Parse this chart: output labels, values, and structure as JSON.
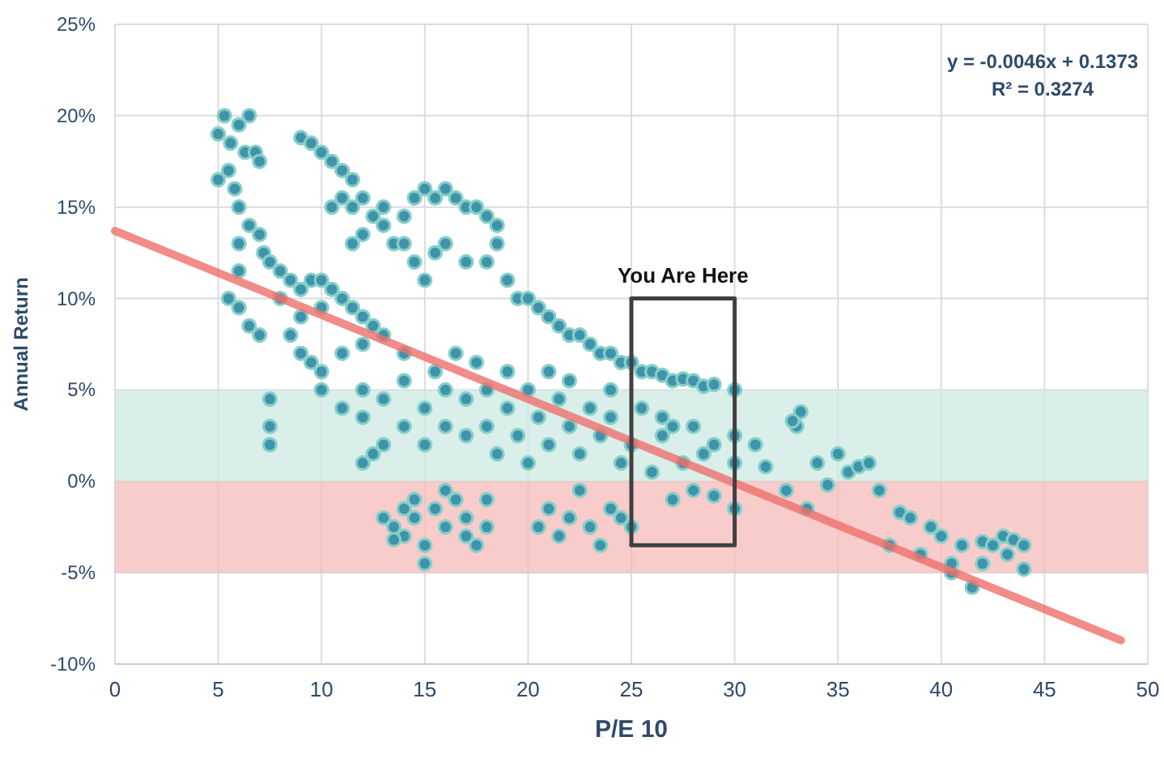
{
  "chart_data": {
    "type": "scatter",
    "xlabel": "P/E 10",
    "ylabel": "Annual Return",
    "xlim": [
      0,
      50
    ],
    "xticks": [
      0,
      5,
      10,
      15,
      20,
      25,
      30,
      35,
      40,
      45,
      50
    ],
    "ylim": [
      -10,
      25
    ],
    "yticks": [
      {
        "value": -10,
        "label": "-10%"
      },
      {
        "value": -5,
        "label": "-5%"
      },
      {
        "value": 0,
        "label": "0%"
      },
      {
        "value": 5,
        "label": "5%"
      },
      {
        "value": 10,
        "label": "10%"
      },
      {
        "value": 15,
        "label": "15%"
      },
      {
        "value": 20,
        "label": "20%"
      },
      {
        "value": 25,
        "label": "25%"
      }
    ],
    "grid": true,
    "bands": [
      {
        "axis": "y",
        "from": 0,
        "to": 5,
        "color": "#cdeae3"
      },
      {
        "axis": "y",
        "from": -5,
        "to": 0,
        "color": "#f4bbb8"
      }
    ],
    "annotations": [
      "y = -0.0046x + 0.1373",
      "R² = 0.3274",
      {
        "text": "You Are Here",
        "x": 27.5,
        "y": 10
      }
    ],
    "series": [
      {
        "color": "#3f93aa",
        "marker": "circle",
        "x": [
          5,
          5.3,
          5.6,
          6,
          6.5,
          6.3,
          5.5,
          5.8,
          5,
          6,
          6.5,
          7,
          6.8,
          7,
          7.2,
          7.5,
          8,
          8.5,
          8,
          9,
          9.5,
          10,
          10.5,
          11,
          11.5,
          12,
          12.5,
          9,
          10,
          8.5,
          9,
          9.5,
          10,
          11,
          12,
          13,
          14,
          7.5,
          7.5,
          7.5,
          6,
          6.5,
          7,
          6,
          5.5,
          6,
          9,
          9.5,
          10,
          10.5,
          11,
          11.5,
          11,
          11.5,
          12,
          12.5,
          13,
          13,
          13.5,
          12,
          11.5,
          10.5,
          14,
          14.5,
          15,
          15.5,
          16,
          16.5,
          17,
          17.5,
          18,
          18.5,
          18.5,
          18,
          14,
          14.5,
          15,
          15.5,
          16,
          17,
          19,
          19.5,
          20,
          20.5,
          21,
          21.5,
          22,
          22.5,
          23,
          23.5,
          24,
          24.5,
          25,
          25.5,
          26,
          26.5,
          27,
          27.5,
          28,
          28.5,
          29,
          30,
          10,
          11,
          12,
          12,
          13,
          13,
          12,
          12.5,
          14,
          14,
          15,
          15,
          15.5,
          16,
          16,
          16.5,
          17,
          17,
          17.5,
          18,
          18,
          18.5,
          19,
          19,
          19.5,
          20,
          20,
          20.5,
          21,
          21,
          21.5,
          22,
          22,
          22.5,
          23,
          23.5,
          24,
          24,
          24.5,
          25,
          25.5,
          26,
          26.5,
          27,
          27.5,
          28,
          28.5,
          29,
          30,
          30,
          31,
          13,
          13.5,
          14,
          14,
          14.5,
          14.5,
          15,
          15,
          15.5,
          16,
          16,
          16.5,
          17,
          17,
          17.5,
          18,
          18,
          13.5,
          20.5,
          21,
          21.5,
          22,
          22.5,
          23,
          23.5,
          24,
          24.5,
          25,
          31.5,
          32.5,
          33,
          33.2,
          32.8,
          33.5,
          34,
          34.5,
          35,
          35.5,
          36,
          36.5,
          37,
          37.5,
          38,
          38.5,
          39,
          39.5,
          40,
          40.5,
          40.5,
          41,
          41.5,
          42,
          42,
          42.5,
          43,
          43.2,
          43.5,
          44,
          44,
          27,
          28,
          29,
          30,
          26.5
        ],
        "values": [
          19,
          20,
          18.5,
          19.5,
          20,
          18,
          17,
          16,
          16.5,
          15,
          14,
          13.5,
          18,
          17.5,
          12.5,
          12,
          11.5,
          11,
          10,
          10.5,
          11,
          11,
          10.5,
          10,
          9.5,
          9,
          8.5,
          9,
          9.5,
          8,
          7,
          6.5,
          6,
          7,
          7.5,
          8,
          7,
          4.5,
          3,
          2,
          9.5,
          8.5,
          8,
          13,
          10,
          11.5,
          18.8,
          18.5,
          18,
          17.5,
          17,
          16.5,
          15.5,
          15,
          15.5,
          14.5,
          14,
          15,
          13,
          13.5,
          13,
          15,
          14.5,
          15.5,
          16,
          15.5,
          16,
          15.5,
          15,
          15,
          14.5,
          14,
          13,
          12,
          13,
          12,
          11,
          12.5,
          13,
          12,
          11,
          10,
          10,
          9.5,
          9,
          8.5,
          8,
          8,
          7.5,
          7,
          7,
          6.5,
          6.5,
          6,
          6,
          5.8,
          5.5,
          5.6,
          5.5,
          5.2,
          5.3,
          5,
          5,
          4,
          3.5,
          5,
          4.5,
          2,
          1,
          1.5,
          3,
          5.5,
          2,
          4,
          6,
          3,
          5,
          7,
          2.5,
          4.5,
          6.5,
          3,
          5,
          1.5,
          4,
          6,
          2.5,
          5,
          1,
          3.5,
          6,
          2,
          4.5,
          3,
          5.5,
          1.5,
          4,
          2.5,
          3.5,
          5,
          1,
          2,
          4,
          0.5,
          2.5,
          3,
          1,
          3,
          1.5,
          2,
          2.5,
          1,
          2,
          -2,
          -2.5,
          -1.5,
          -3,
          -1,
          -2,
          -3.5,
          -4.5,
          -1.5,
          -2.5,
          -0.5,
          -1,
          -2,
          -3,
          -3.5,
          -1,
          -2.5,
          -3.2,
          -2.5,
          -1.5,
          -3,
          -2,
          -0.5,
          -2.5,
          -3.5,
          -1.5,
          -2,
          -2.5,
          0.8,
          -0.5,
          3,
          3.8,
          3.3,
          -1.5,
          1,
          -0.2,
          1.5,
          0.5,
          0.8,
          1,
          -0.5,
          -3.5,
          -1.7,
          -2,
          -4,
          -2.5,
          -3,
          -5,
          -4.5,
          -3.5,
          -5.8,
          -3.3,
          -4.5,
          -3.5,
          -3,
          -4,
          -3.2,
          -3.5,
          -4.8,
          -1,
          -0.5,
          -0.8,
          -1.5,
          3.5
        ]
      },
      {
        "type": "line",
        "color": "#ee6f6c",
        "x": [
          0,
          48.7
        ],
        "values": [
          13.7,
          -8.7
        ]
      },
      {
        "type": "line",
        "color": "#404040",
        "x": [
          25,
          30
        ],
        "values": [
          10,
          10
        ]
      },
      {
        "type": "line",
        "color": "#404040",
        "x": [
          25,
          30
        ],
        "values": [
          -3.5,
          -3.5
        ]
      }
    ]
  }
}
